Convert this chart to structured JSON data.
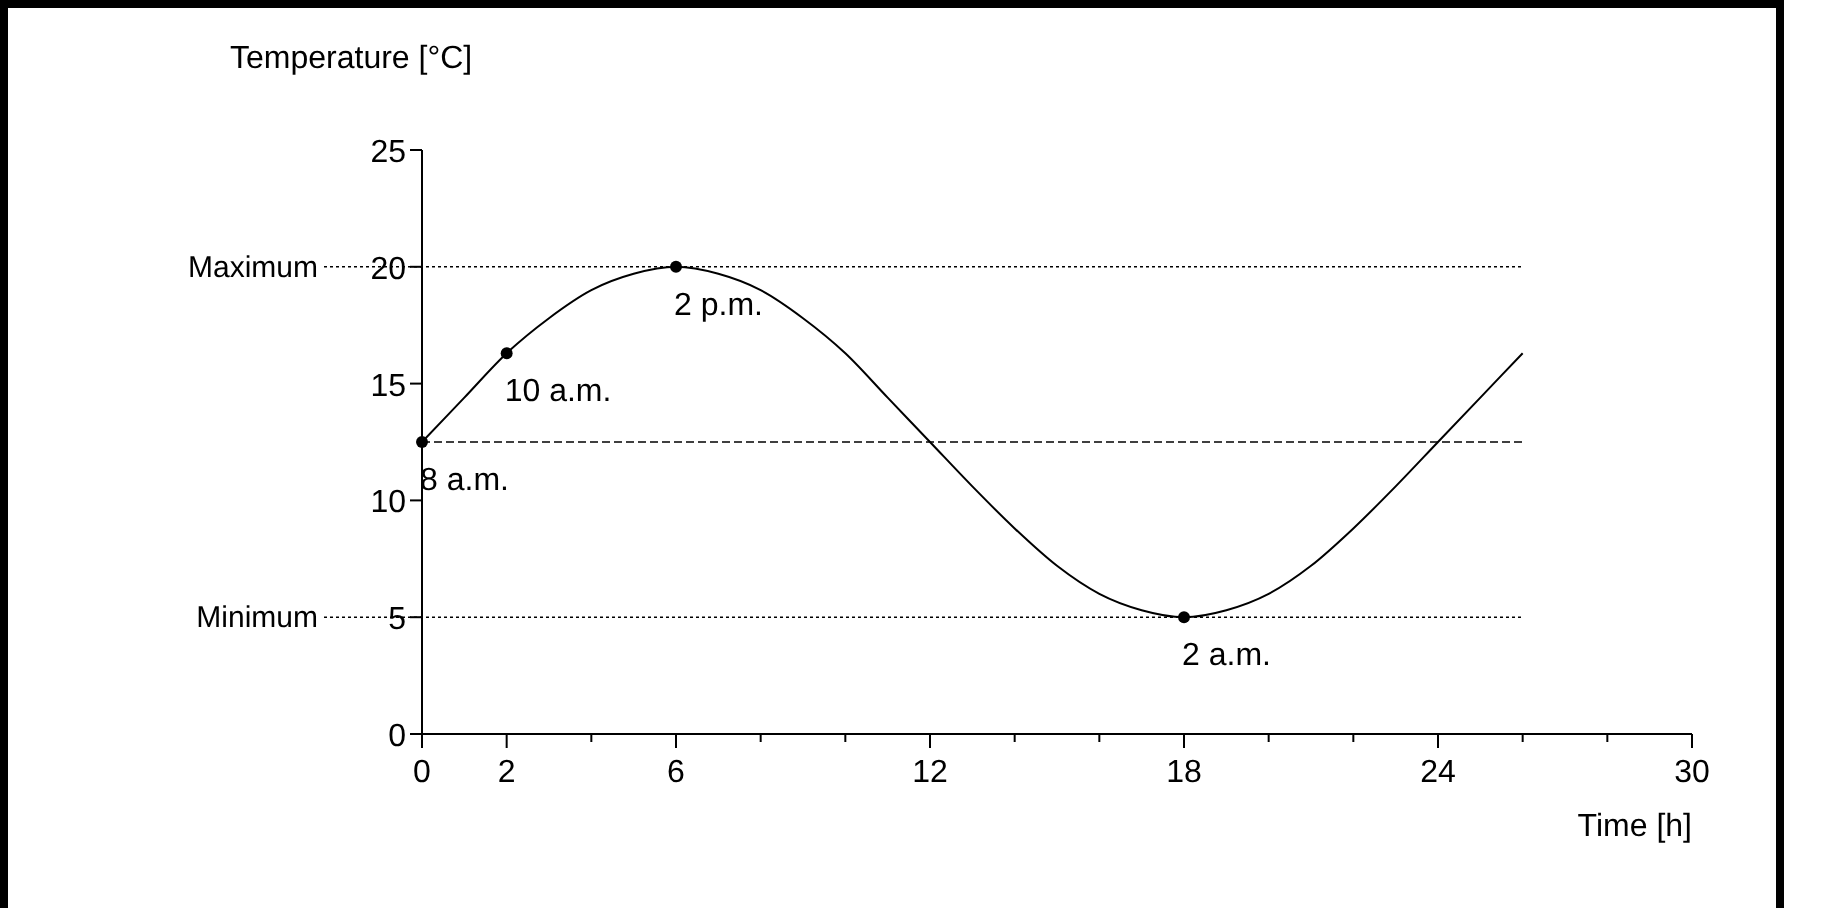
{
  "chart_data": {
    "type": "line",
    "xlabel": "Time [h]",
    "ylabel": "Temperature [°C]",
    "xlim": [
      0,
      30
    ],
    "ylim": [
      0,
      25
    ],
    "xticks": [
      0,
      2,
      {
        "value": 4,
        "label": null
      },
      6,
      {
        "value": 8,
        "label": null
      },
      {
        "value": 10,
        "label": null
      },
      12,
      {
        "value": 14,
        "label": null
      },
      {
        "value": 16,
        "label": null
      },
      18,
      {
        "value": 20,
        "label": null
      },
      {
        "value": 22,
        "label": null
      },
      24,
      {
        "value": 26,
        "label": null
      },
      {
        "value": 28,
        "label": null
      },
      30
    ],
    "yticks": [
      0,
      5,
      10,
      15,
      20,
      25
    ],
    "grid": false,
    "series": [
      {
        "color": "#000000",
        "marker": "none",
        "x": [
          0,
          1,
          2,
          3,
          4,
          5,
          6,
          7,
          8,
          9,
          10,
          11,
          12,
          13,
          14,
          15,
          16,
          17,
          18,
          19,
          20,
          21,
          22,
          23,
          24,
          25,
          26
        ],
        "values": [
          12.5,
          14.4,
          16.3,
          17.8,
          19,
          19.7,
          20,
          19.7,
          19,
          17.8,
          16.3,
          14.4,
          12.5,
          10.6,
          8.8,
          7.2,
          6,
          5.3,
          5,
          5.3,
          6,
          7.2,
          8.8,
          10.6,
          12.5,
          14.4,
          16.3
        ]
      },
      {
        "type": "scatter",
        "color": "#000000",
        "marker": "circle",
        "x": [
          0,
          2,
          6,
          18
        ],
        "values": [
          12.5,
          16.3,
          20,
          5
        ]
      }
    ],
    "ref_lines": [
      {
        "axis": "y",
        "value": 20,
        "label": "Maximum",
        "line_style": "dotted"
      },
      {
        "axis": "y",
        "value": 12.5,
        "label": null,
        "line_style": "dashed"
      },
      {
        "axis": "y",
        "value": 5,
        "label": "Minimum",
        "line_style": "dotted"
      }
    ],
    "annotations": [
      {
        "text": "8 a.m.",
        "x": 0,
        "y": 12.5
      },
      {
        "text": "10 a.m.",
        "x": 2,
        "y": 16.3
      },
      {
        "text": "2 p.m.",
        "x": 6,
        "y": 20
      },
      {
        "text": "2 a.m.",
        "x": 18,
        "y": 5
      }
    ]
  }
}
